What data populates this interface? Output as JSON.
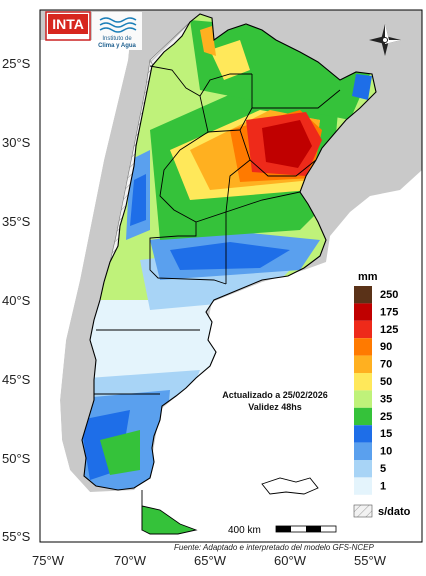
{
  "header": {
    "logo_inta_text": "INTA",
    "logo_institute_line1": "Instituto de",
    "logo_institute_line2": "Clima y Agua"
  },
  "axes": {
    "latitude_labels": [
      "25°S",
      "30°S",
      "35°S",
      "40°S",
      "45°S",
      "50°S",
      "55°S"
    ],
    "longitude_labels": [
      "75°W",
      "70°W",
      "65°W",
      "60°W",
      "55°W"
    ]
  },
  "legend": {
    "title": "mm",
    "items": [
      {
        "label": "250",
        "color": "#5a3218"
      },
      {
        "label": "175",
        "color": "#c00000"
      },
      {
        "label": "125",
        "color": "#ee2a1a"
      },
      {
        "label": "90",
        "color": "#ff7a00"
      },
      {
        "label": "70",
        "color": "#ffb020"
      },
      {
        "label": "50",
        "color": "#ffe85a"
      },
      {
        "label": "35",
        "color": "#bff27a"
      },
      {
        "label": "25",
        "color": "#35c23a"
      },
      {
        "label": "15",
        "color": "#1e6ee8"
      },
      {
        "label": "10",
        "color": "#5aa0ee"
      },
      {
        "label": "5",
        "color": "#a8d4f6"
      },
      {
        "label": "1",
        "color": "#e4f4fc"
      }
    ],
    "nodata_label": "s/dato"
  },
  "annotation": {
    "line1": "Actualizado a 25/02/2026",
    "line2": "Validez 48hs"
  },
  "scale_bar": {
    "label": "400 km"
  },
  "source": "Fuente: Adaptado e interpretado del modelo GFS-NCEP"
}
